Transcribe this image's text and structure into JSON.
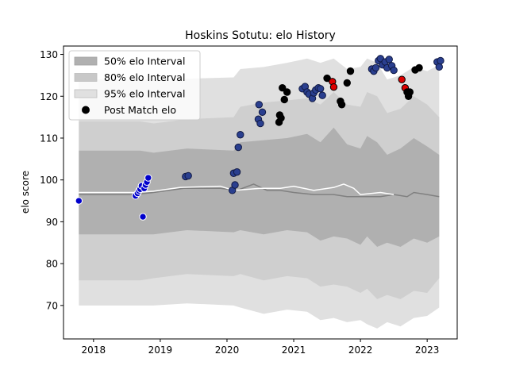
{
  "chart_data": {
    "type": "scatter",
    "title": "Hoskins Sotutu: elo History",
    "xlabel": "",
    "ylabel": "elo score",
    "xlim": [
      2017.55,
      2023.45
    ],
    "ylim": [
      62,
      132
    ],
    "x_ticks": [
      2018,
      2019,
      2020,
      2021,
      2022,
      2023
    ],
    "x_tick_labels": [
      "2018",
      "2019",
      "2020",
      "2021",
      "2022",
      "2023"
    ],
    "y_ticks": [
      70,
      80,
      90,
      100,
      110,
      120,
      130
    ],
    "y_tick_labels": [
      "70",
      "80",
      "90",
      "100",
      "110",
      "120",
      "130"
    ],
    "grid": false,
    "legend_position": "top-left",
    "legend": [
      {
        "label": "50% elo Interval",
        "kind": "patch",
        "color": "#b0b0b0"
      },
      {
        "label": "80% elo Interval",
        "kind": "patch",
        "color": "#c8c8c8"
      },
      {
        "label": "95% elo Interval",
        "kind": "patch",
        "color": "#e0e0e0"
      },
      {
        "label": "Post Match elo",
        "kind": "marker",
        "color": "#000000"
      }
    ],
    "colors": {
      "band95": "#e0e0e0",
      "band80": "#cfcfcf",
      "band50": "#b0b0b0",
      "median_line": "#808080",
      "expected_line": "#ffffff",
      "point_blue": "#0000cc",
      "point_navy": "#2a3f8f",
      "point_black": "#000000",
      "point_red": "#dd0000"
    },
    "bands": {
      "x": [
        2017.78,
        2018.7,
        2018.9,
        2019.4,
        2020.1,
        2020.2,
        2020.55,
        2020.9,
        2021.2,
        2021.4,
        2021.6,
        2021.8,
        2022.0,
        2022.1,
        2022.25,
        2022.4,
        2022.6,
        2022.8,
        2023.0,
        2023.18
      ],
      "p95_hi": [
        124.0,
        124.0,
        124.0,
        124.2,
        124.5,
        126.5,
        127.0,
        128.0,
        129.0,
        128.0,
        129.0,
        126.5,
        127.0,
        129.0,
        128.0,
        124.0,
        125.0,
        127.0,
        126.0,
        127.5
      ],
      "p80_hi": [
        114.0,
        114.0,
        113.5,
        114.5,
        115.0,
        117.5,
        118.5,
        119.0,
        119.5,
        118.0,
        121.0,
        118.0,
        117.5,
        121.0,
        120.0,
        116.0,
        117.0,
        120.0,
        118.0,
        115.0
      ],
      "p50_hi": [
        107.0,
        107.0,
        106.5,
        107.5,
        107.0,
        109.0,
        109.5,
        110.0,
        111.0,
        109.0,
        112.5,
        108.5,
        107.5,
        110.5,
        109.0,
        106.0,
        107.5,
        110.0,
        108.0,
        106.0
      ],
      "p50_lo": [
        87.0,
        87.0,
        87.0,
        88.0,
        87.5,
        88.0,
        87.0,
        88.0,
        87.5,
        85.5,
        86.5,
        86.0,
        84.5,
        86.5,
        84.0,
        85.0,
        84.0,
        86.0,
        85.0,
        86.5
      ],
      "p80_lo": [
        76.0,
        76.0,
        76.5,
        77.5,
        77.0,
        77.5,
        76.0,
        77.0,
        76.5,
        74.5,
        75.0,
        74.5,
        73.0,
        74.0,
        71.5,
        72.5,
        71.5,
        73.5,
        73.0,
        76.5
      ],
      "p95_lo": [
        70.0,
        70.0,
        70.0,
        70.5,
        70.0,
        69.5,
        68.0,
        69.0,
        68.5,
        66.5,
        67.0,
        66.0,
        66.5,
        65.5,
        64.5,
        66.0,
        65.0,
        67.0,
        67.5,
        69.5
      ]
    },
    "series": [
      {
        "kind": "line",
        "color": "#808080",
        "x": [
          2017.78,
          2018.6,
          2018.9,
          2019.35,
          2019.9,
          2020.15,
          2020.4,
          2020.6,
          2020.8,
          2021.0,
          2021.3,
          2021.6,
          2021.8,
          2022.0,
          2022.3,
          2022.5,
          2022.7,
          2022.8,
          2023.0,
          2023.18
        ],
        "y": [
          96.5,
          96.5,
          97.0,
          98.0,
          98.0,
          97.5,
          99.0,
          97.5,
          97.5,
          97.0,
          96.5,
          96.5,
          96.0,
          96.0,
          96.0,
          96.5,
          96.0,
          97.0,
          96.5,
          96.0
        ]
      },
      {
        "kind": "line",
        "color": "#ffffff",
        "x": [
          2017.78,
          2018.6,
          2018.9,
          2019.3,
          2019.9,
          2020.1,
          2020.5,
          2020.8,
          2021.0,
          2021.3,
          2021.6,
          2021.75,
          2021.9,
          2022.0,
          2022.3,
          2022.5
        ],
        "y": [
          97.0,
          97.0,
          97.3,
          98.2,
          98.5,
          97.5,
          98.0,
          98.0,
          98.5,
          97.5,
          98.2,
          99.0,
          98.0,
          96.5,
          97.0,
          96.5
        ]
      },
      {
        "name": "Post Match elo",
        "kind": "points",
        "points": [
          [
            2017.78,
            95.0,
            "blue"
          ],
          [
            2018.63,
            96.2,
            "blue"
          ],
          [
            2018.66,
            96.8,
            "blue"
          ],
          [
            2018.68,
            97.4,
            "blue"
          ],
          [
            2018.7,
            97.8,
            "blue"
          ],
          [
            2018.72,
            98.6,
            "blue"
          ],
          [
            2018.74,
            91.2,
            "blue"
          ],
          [
            2018.76,
            98.0,
            "blue"
          ],
          [
            2018.78,
            98.8,
            "blue"
          ],
          [
            2018.8,
            99.5,
            "blue"
          ],
          [
            2018.82,
            100.5,
            "blue"
          ],
          [
            2019.38,
            100.8,
            "navy"
          ],
          [
            2019.42,
            101.0,
            "navy"
          ],
          [
            2020.08,
            97.5,
            "navy"
          ],
          [
            2020.1,
            101.6,
            "navy"
          ],
          [
            2020.12,
            98.8,
            "navy"
          ],
          [
            2020.15,
            101.9,
            "navy"
          ],
          [
            2020.17,
            107.8,
            "navy"
          ],
          [
            2020.2,
            110.8,
            "navy"
          ],
          [
            2020.47,
            114.5,
            "navy"
          ],
          [
            2020.48,
            118.0,
            "navy"
          ],
          [
            2020.5,
            113.5,
            "navy"
          ],
          [
            2020.53,
            116.2,
            "navy"
          ],
          [
            2020.78,
            113.8,
            "black"
          ],
          [
            2020.79,
            115.5,
            "black"
          ],
          [
            2020.81,
            114.8,
            "black"
          ],
          [
            2020.83,
            122.0,
            "black"
          ],
          [
            2020.86,
            119.2,
            "black"
          ],
          [
            2020.9,
            121.0,
            "black"
          ],
          [
            2021.13,
            121.8,
            "navy"
          ],
          [
            2021.17,
            122.3,
            "navy"
          ],
          [
            2021.2,
            121.0,
            "navy"
          ],
          [
            2021.23,
            120.5,
            "navy"
          ],
          [
            2021.28,
            119.5,
            "navy"
          ],
          [
            2021.3,
            120.8,
            "navy"
          ],
          [
            2021.33,
            121.5,
            "navy"
          ],
          [
            2021.37,
            122.0,
            "navy"
          ],
          [
            2021.4,
            121.8,
            "navy"
          ],
          [
            2021.43,
            120.2,
            "navy"
          ],
          [
            2021.5,
            124.3,
            "black"
          ],
          [
            2021.58,
            123.5,
            "red"
          ],
          [
            2021.6,
            122.2,
            "red"
          ],
          [
            2021.7,
            118.8,
            "black"
          ],
          [
            2021.72,
            118.0,
            "black"
          ],
          [
            2021.8,
            123.2,
            "black"
          ],
          [
            2021.85,
            126.0,
            "black"
          ],
          [
            2022.17,
            126.5,
            "navy"
          ],
          [
            2022.2,
            126.0,
            "navy"
          ],
          [
            2022.23,
            126.8,
            "navy"
          ],
          [
            2022.27,
            128.5,
            "navy"
          ],
          [
            2022.3,
            129.0,
            "navy"
          ],
          [
            2022.33,
            127.5,
            "navy"
          ],
          [
            2022.37,
            128.2,
            "navy"
          ],
          [
            2022.4,
            126.8,
            "navy"
          ],
          [
            2022.43,
            128.8,
            "navy"
          ],
          [
            2022.47,
            127.3,
            "navy"
          ],
          [
            2022.5,
            126.2,
            "navy"
          ],
          [
            2022.62,
            124.0,
            "red"
          ],
          [
            2022.67,
            122.0,
            "red"
          ],
          [
            2022.7,
            121.0,
            "black"
          ],
          [
            2022.72,
            120.0,
            "black"
          ],
          [
            2022.74,
            121.0,
            "black"
          ],
          [
            2022.82,
            126.3,
            "black"
          ],
          [
            2022.88,
            126.8,
            "black"
          ],
          [
            2023.15,
            128.2,
            "navy"
          ],
          [
            2023.18,
            127.0,
            "navy"
          ],
          [
            2023.2,
            128.5,
            "navy"
          ]
        ]
      }
    ]
  }
}
